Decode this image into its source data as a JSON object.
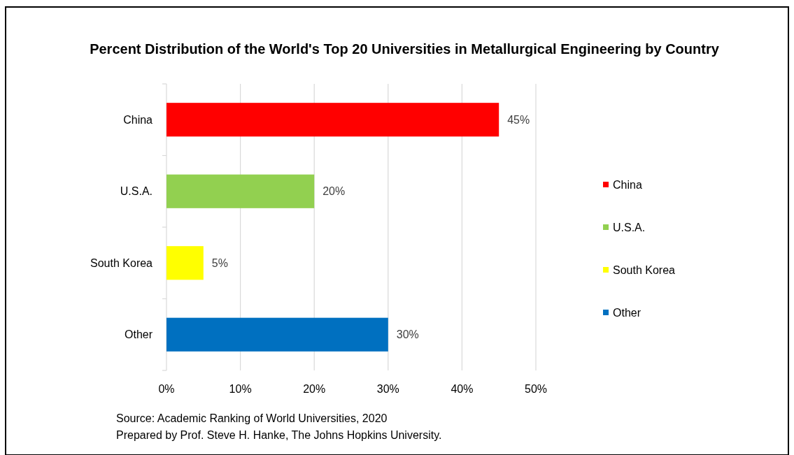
{
  "chart_data": {
    "type": "bar",
    "orientation": "horizontal",
    "title": "Percent Distribution of the World's Top 20 Universities in Metallurgical Engineering by Country",
    "categories": [
      "China",
      "U.S.A.",
      "South Korea",
      "Other"
    ],
    "series": [
      {
        "name": "China",
        "color": "#ff0000",
        "values": [
          45,
          null,
          null,
          null
        ],
        "value_labels": [
          "45%",
          null,
          null,
          null
        ]
      },
      {
        "name": "U.S.A.",
        "color": "#92d050",
        "values": [
          null,
          20,
          null,
          null
        ],
        "value_labels": [
          null,
          "20%",
          null,
          null
        ]
      },
      {
        "name": "South Korea",
        "color": "#ffff00",
        "values": [
          null,
          null,
          5,
          null
        ],
        "value_labels": [
          null,
          null,
          "5%",
          null
        ]
      },
      {
        "name": "Other",
        "color": "#0070c0",
        "values": [
          null,
          null,
          null,
          30
        ],
        "value_labels": [
          null,
          null,
          null,
          "30%"
        ]
      }
    ],
    "stacked": true,
    "xlim": [
      0,
      50
    ],
    "xticks": [
      {
        "value": 0,
        "label": "0%"
      },
      {
        "value": 10,
        "label": "10%"
      },
      {
        "value": 20,
        "label": "20%"
      },
      {
        "value": 30,
        "label": "30%"
      },
      {
        "value": 40,
        "label": "40%"
      },
      {
        "value": 50,
        "label": "50%"
      }
    ],
    "grid": "x",
    "legend": "right",
    "annotations": [
      "Source: Academic Ranking of World Universities, 2020",
      "Prepared by Prof. Steve H. Hanke, The Johns Hopkins University."
    ]
  }
}
